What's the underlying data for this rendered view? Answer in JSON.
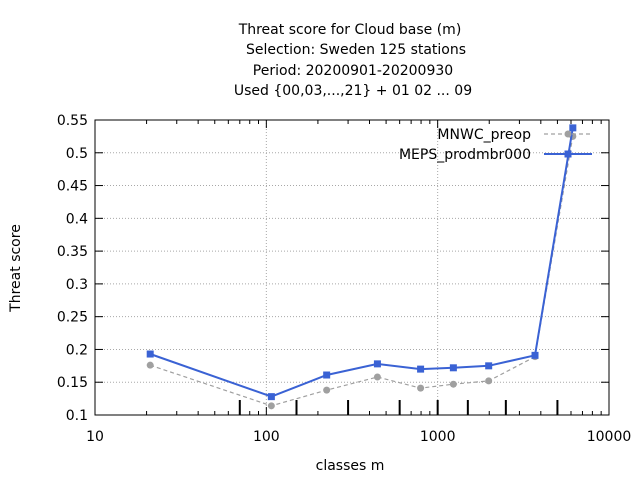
{
  "chart_data": {
    "type": "line",
    "title_lines": [
      "Threat score  for Cloud base (m)",
      "Selection: Sweden    125 stations",
      "Period: 20200901-20200930",
      "Used {00,03,...,21} + 01 02 ... 09"
    ],
    "xlabel": "classes m",
    "ylabel": "Threat score",
    "x_scale": "log",
    "xlim": [
      10,
      10000
    ],
    "ylim": [
      0.1,
      0.55
    ],
    "x_ticks": [
      10,
      100,
      1000,
      10000
    ],
    "x_tick_labels": [
      "10",
      "100",
      "1000",
      "10000"
    ],
    "y_ticks": [
      0.1,
      0.15,
      0.2,
      0.25,
      0.3,
      0.35,
      0.4,
      0.45,
      0.5,
      0.55
    ],
    "y_tick_labels": [
      "0.1",
      "0.15",
      "0.2",
      "0.25",
      "0.3",
      "0.35",
      "0.4",
      "0.45",
      "0.5",
      "0.55"
    ],
    "grid": true,
    "legend_position": "top-right",
    "class_threshold_marks": [
      70,
      150,
      300,
      600,
      1000,
      1500,
      2500,
      5000
    ],
    "series": [
      {
        "name": "MNWC_preop",
        "color": "#a0a0a0",
        "style": "dashed",
        "marker": "circle",
        "x": [
          21,
          107,
          225,
          445,
          795,
          1235,
          1985,
          3700,
          6150
        ],
        "y": [
          0.176,
          0.114,
          0.138,
          0.158,
          0.141,
          0.147,
          0.152,
          0.189,
          0.525
        ]
      },
      {
        "name": "MEPS_prodmbr000",
        "color": "#3a62d4",
        "style": "solid",
        "marker": "square",
        "x": [
          21,
          107,
          225,
          445,
          795,
          1235,
          1985,
          3700,
          6150
        ],
        "y": [
          0.193,
          0.128,
          0.161,
          0.178,
          0.17,
          0.172,
          0.175,
          0.191,
          0.538
        ]
      }
    ]
  }
}
